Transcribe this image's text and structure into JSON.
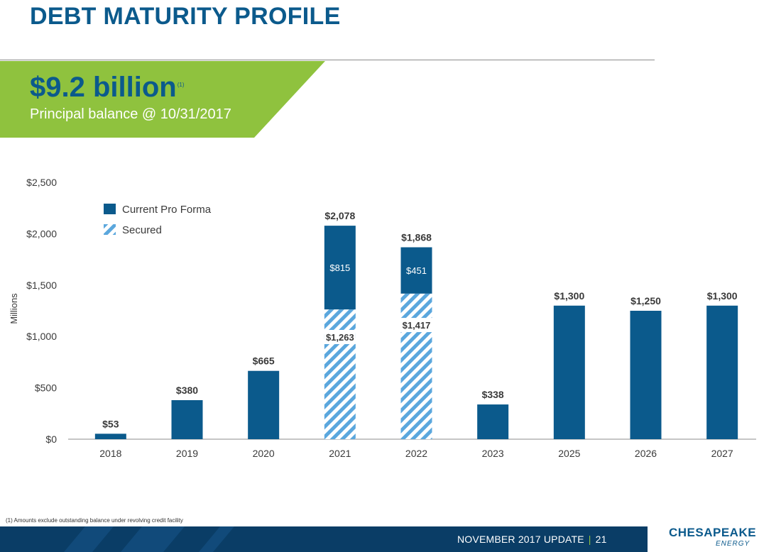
{
  "title": "DEBT MATURITY PROFILE",
  "highlight": {
    "value": "$9.2 billion",
    "footnote_marker": "(1)",
    "subtitle": "Principal balance @ 10/31/2017"
  },
  "footnote": "(1)  Amounts exclude outstanding balance under revolving credit facility",
  "footer": {
    "text": "NOVEMBER 2017 UPDATE",
    "separator": "|",
    "page": "21"
  },
  "logo": {
    "name": "CHESAPEAKE",
    "sub": "ENERGY"
  },
  "colors": {
    "primary": "#0b5a8c",
    "accent": "#8fc23e",
    "stripe": "#5ba7dd",
    "navy": "#0a3d66"
  },
  "chart_data": {
    "type": "bar",
    "stacked": true,
    "ylabel": "Millions",
    "ylim": [
      0,
      2500
    ],
    "yticks": [
      0,
      500,
      1000,
      1500,
      2000,
      2500
    ],
    "ytick_labels": [
      "$0",
      "$500",
      "$1,000",
      "$1,500",
      "$2,000",
      "$2,500"
    ],
    "grid": false,
    "legend_position": "top-left",
    "categories": [
      "2018",
      "2019",
      "2020",
      "2021",
      "2022",
      "2023",
      "2025",
      "2026",
      "2027"
    ],
    "series": [
      {
        "name": "Secured",
        "pattern": "hatched",
        "values": [
          0,
          0,
          0,
          1263,
          1417,
          0,
          0,
          0,
          0
        ]
      },
      {
        "name": "Current Pro Forma",
        "values": [
          53,
          380,
          665,
          815,
          451,
          338,
          1300,
          1250,
          1300
        ]
      }
    ],
    "totals": [
      53,
      380,
      665,
      2078,
      1868,
      338,
      1300,
      1250,
      1300
    ],
    "total_labels": [
      "$53",
      "$380",
      "$665",
      "$2,078",
      "$1,868",
      "$338",
      "$1,300",
      "$1,250",
      "$1,300"
    ],
    "segment_labels": {
      "Secured": [
        "",
        "",
        "",
        "$1,263",
        "$1,417",
        "",
        "",
        "",
        ""
      ],
      "Current Pro Forma": [
        "",
        "",
        "",
        "$815",
        "$451",
        "",
        "",
        "",
        ""
      ]
    }
  }
}
